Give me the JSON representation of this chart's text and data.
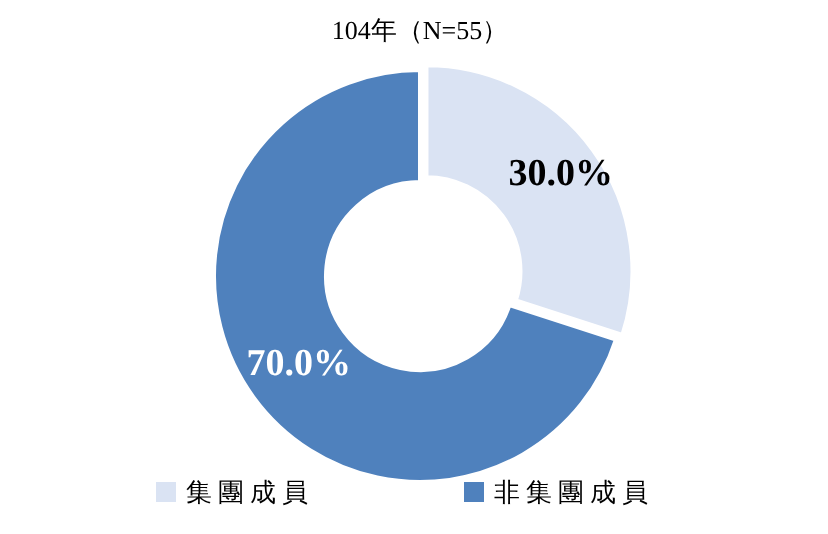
{
  "chart_data": {
    "type": "donut",
    "title": "104年（N=55）",
    "categories": [
      "集團成員",
      "非集團成員"
    ],
    "values": [
      30,
      70
    ],
    "colors": [
      "#dae3f3",
      "#4f81bd"
    ],
    "value_labels": [
      "30.0%",
      "70.0%"
    ],
    "legend": "bottom"
  }
}
